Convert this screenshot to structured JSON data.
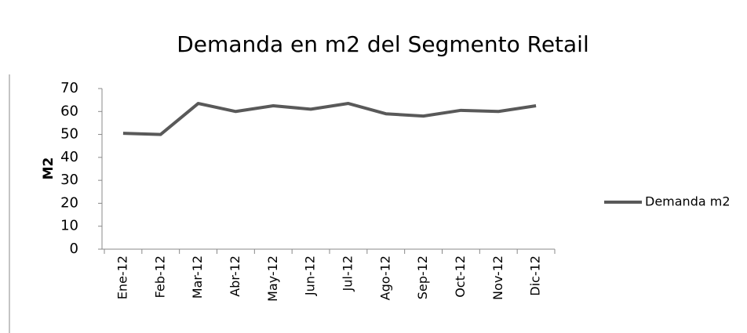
{
  "chart_data": {
    "type": "line",
    "title": "Demanda en m2 del Segmento Retail",
    "ylabel": "M2",
    "categories": [
      "Ene-12",
      "Feb-12",
      "Mar-12",
      "Abr-12",
      "May-12",
      "Jun-12",
      "Jul-12",
      "Ago-12",
      "Sep-12",
      "Oct-12",
      "Nov-12",
      "Dic-12"
    ],
    "series": [
      {
        "name": "Demanda m2",
        "color": "#595959",
        "values": [
          50.5,
          50,
          63.5,
          60,
          62.5,
          61,
          63.5,
          59,
          58,
          60.5,
          60,
          62.5
        ]
      }
    ],
    "ylim": [
      0,
      70
    ],
    "yticks": [
      0,
      10,
      20,
      30,
      40,
      50,
      60,
      70
    ],
    "grid": false,
    "legend": "right"
  }
}
